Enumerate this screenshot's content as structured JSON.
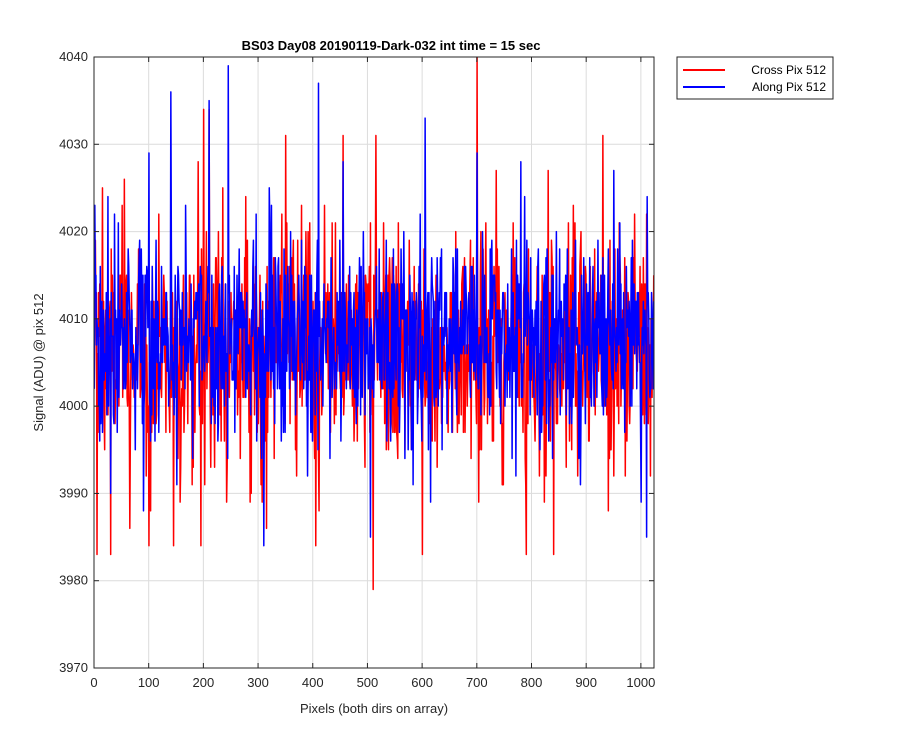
{
  "chart_data": {
    "type": "line",
    "title": "BS03 Day08 20190119-Dark-032 int time = 15 sec",
    "xlabel": "Pixels (both dirs on array)",
    "ylabel": "Signal (ADU) @ pix 512",
    "xlim": [
      0,
      1024
    ],
    "ylim": [
      3970,
      4040
    ],
    "xticks": [
      0,
      100,
      200,
      300,
      400,
      500,
      600,
      700,
      800,
      900,
      1000
    ],
    "yticks": [
      3970,
      3980,
      3990,
      4000,
      4010,
      4020,
      4030,
      4040
    ],
    "grid": true,
    "legend_position": "outside-top-right",
    "series": [
      {
        "name": "Cross Pix 512",
        "color": "#ff0000",
        "n_points": 1024,
        "typical_range": [
          3996,
          4017
        ],
        "highlights": [
          {
            "x": 5,
            "y": 3983
          },
          {
            "x": 15,
            "y": 4025
          },
          {
            "x": 30,
            "y": 3983
          },
          {
            "x": 55,
            "y": 4026
          },
          {
            "x": 65,
            "y": 3986
          },
          {
            "x": 100,
            "y": 3984
          },
          {
            "x": 145,
            "y": 3984
          },
          {
            "x": 190,
            "y": 4028
          },
          {
            "x": 195,
            "y": 3984
          },
          {
            "x": 200,
            "y": 4034
          },
          {
            "x": 210,
            "y": 4034
          },
          {
            "x": 235,
            "y": 4025
          },
          {
            "x": 350,
            "y": 4031
          },
          {
            "x": 405,
            "y": 3984
          },
          {
            "x": 455,
            "y": 4031
          },
          {
            "x": 510,
            "y": 3979
          },
          {
            "x": 515,
            "y": 4031
          },
          {
            "x": 600,
            "y": 3983
          },
          {
            "x": 700,
            "y": 4040
          },
          {
            "x": 735,
            "y": 4027
          },
          {
            "x": 790,
            "y": 3983
          },
          {
            "x": 830,
            "y": 4027
          },
          {
            "x": 840,
            "y": 3983
          },
          {
            "x": 930,
            "y": 4031
          },
          {
            "x": 940,
            "y": 3988
          },
          {
            "x": 1010,
            "y": 4022
          }
        ]
      },
      {
        "name": "Along Pix 512",
        "color": "#0000ff",
        "n_points": 1024,
        "typical_range": [
          3998,
          4017
        ],
        "highlights": [
          {
            "x": 10,
            "y": 3996
          },
          {
            "x": 25,
            "y": 4024
          },
          {
            "x": 100,
            "y": 4029
          },
          {
            "x": 140,
            "y": 4036
          },
          {
            "x": 210,
            "y": 4035
          },
          {
            "x": 245,
            "y": 4039
          },
          {
            "x": 310,
            "y": 3984
          },
          {
            "x": 320,
            "y": 4025
          },
          {
            "x": 410,
            "y": 4037
          },
          {
            "x": 455,
            "y": 4028
          },
          {
            "x": 505,
            "y": 3985
          },
          {
            "x": 605,
            "y": 4033
          },
          {
            "x": 615,
            "y": 3989
          },
          {
            "x": 700,
            "y": 4029
          },
          {
            "x": 780,
            "y": 4028
          },
          {
            "x": 950,
            "y": 4027
          },
          {
            "x": 1000,
            "y": 3989
          },
          {
            "x": 1010,
            "y": 3985
          }
        ]
      }
    ]
  }
}
